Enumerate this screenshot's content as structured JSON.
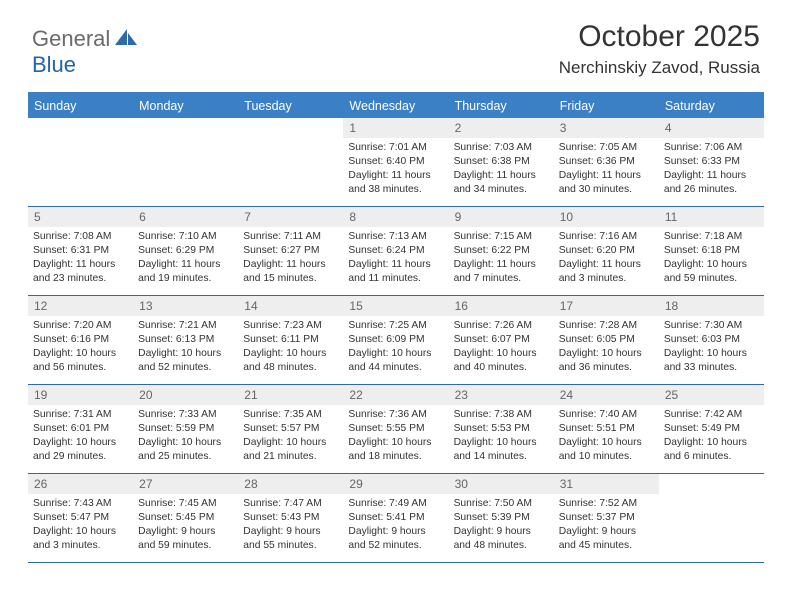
{
  "brand": {
    "word1": "General",
    "word2": "Blue"
  },
  "title": "October 2025",
  "location": "Nerchinskiy Zavod, Russia",
  "colors": {
    "header_bg": "#3b7fc4",
    "border": "#2e6aaa",
    "daynum_bg": "#eeeeee",
    "brand_blue": "#2265a9",
    "brand_gray": "#6b6b6b",
    "text": "#333333"
  },
  "typography": {
    "title_fontsize": 30,
    "location_fontsize": 17,
    "dayhead_fontsize": 12.5,
    "daynum_fontsize": 12,
    "body_fontsize": 10.3
  },
  "day_headers": [
    "Sunday",
    "Monday",
    "Tuesday",
    "Wednesday",
    "Thursday",
    "Friday",
    "Saturday"
  ],
  "weeks": [
    [
      {
        "n": "",
        "sunrise": "",
        "sunset": "",
        "day_h": "",
        "day_m": ""
      },
      {
        "n": "",
        "sunrise": "",
        "sunset": "",
        "day_h": "",
        "day_m": ""
      },
      {
        "n": "",
        "sunrise": "",
        "sunset": "",
        "day_h": "",
        "day_m": ""
      },
      {
        "n": "1",
        "sunrise": "7:01 AM",
        "sunset": "6:40 PM",
        "day_h": "11",
        "day_m": "38"
      },
      {
        "n": "2",
        "sunrise": "7:03 AM",
        "sunset": "6:38 PM",
        "day_h": "11",
        "day_m": "34"
      },
      {
        "n": "3",
        "sunrise": "7:05 AM",
        "sunset": "6:36 PM",
        "day_h": "11",
        "day_m": "30"
      },
      {
        "n": "4",
        "sunrise": "7:06 AM",
        "sunset": "6:33 PM",
        "day_h": "11",
        "day_m": "26"
      }
    ],
    [
      {
        "n": "5",
        "sunrise": "7:08 AM",
        "sunset": "6:31 PM",
        "day_h": "11",
        "day_m": "23"
      },
      {
        "n": "6",
        "sunrise": "7:10 AM",
        "sunset": "6:29 PM",
        "day_h": "11",
        "day_m": "19"
      },
      {
        "n": "7",
        "sunrise": "7:11 AM",
        "sunset": "6:27 PM",
        "day_h": "11",
        "day_m": "15"
      },
      {
        "n": "8",
        "sunrise": "7:13 AM",
        "sunset": "6:24 PM",
        "day_h": "11",
        "day_m": "11"
      },
      {
        "n": "9",
        "sunrise": "7:15 AM",
        "sunset": "6:22 PM",
        "day_h": "11",
        "day_m": "7"
      },
      {
        "n": "10",
        "sunrise": "7:16 AM",
        "sunset": "6:20 PM",
        "day_h": "11",
        "day_m": "3"
      },
      {
        "n": "11",
        "sunrise": "7:18 AM",
        "sunset": "6:18 PM",
        "day_h": "10",
        "day_m": "59"
      }
    ],
    [
      {
        "n": "12",
        "sunrise": "7:20 AM",
        "sunset": "6:16 PM",
        "day_h": "10",
        "day_m": "56"
      },
      {
        "n": "13",
        "sunrise": "7:21 AM",
        "sunset": "6:13 PM",
        "day_h": "10",
        "day_m": "52"
      },
      {
        "n": "14",
        "sunrise": "7:23 AM",
        "sunset": "6:11 PM",
        "day_h": "10",
        "day_m": "48"
      },
      {
        "n": "15",
        "sunrise": "7:25 AM",
        "sunset": "6:09 PM",
        "day_h": "10",
        "day_m": "44"
      },
      {
        "n": "16",
        "sunrise": "7:26 AM",
        "sunset": "6:07 PM",
        "day_h": "10",
        "day_m": "40"
      },
      {
        "n": "17",
        "sunrise": "7:28 AM",
        "sunset": "6:05 PM",
        "day_h": "10",
        "day_m": "36"
      },
      {
        "n": "18",
        "sunrise": "7:30 AM",
        "sunset": "6:03 PM",
        "day_h": "10",
        "day_m": "33"
      }
    ],
    [
      {
        "n": "19",
        "sunrise": "7:31 AM",
        "sunset": "6:01 PM",
        "day_h": "10",
        "day_m": "29"
      },
      {
        "n": "20",
        "sunrise": "7:33 AM",
        "sunset": "5:59 PM",
        "day_h": "10",
        "day_m": "25"
      },
      {
        "n": "21",
        "sunrise": "7:35 AM",
        "sunset": "5:57 PM",
        "day_h": "10",
        "day_m": "21"
      },
      {
        "n": "22",
        "sunrise": "7:36 AM",
        "sunset": "5:55 PM",
        "day_h": "10",
        "day_m": "18"
      },
      {
        "n": "23",
        "sunrise": "7:38 AM",
        "sunset": "5:53 PM",
        "day_h": "10",
        "day_m": "14"
      },
      {
        "n": "24",
        "sunrise": "7:40 AM",
        "sunset": "5:51 PM",
        "day_h": "10",
        "day_m": "10"
      },
      {
        "n": "25",
        "sunrise": "7:42 AM",
        "sunset": "5:49 PM",
        "day_h": "10",
        "day_m": "6"
      }
    ],
    [
      {
        "n": "26",
        "sunrise": "7:43 AM",
        "sunset": "5:47 PM",
        "day_h": "10",
        "day_m": "3"
      },
      {
        "n": "27",
        "sunrise": "7:45 AM",
        "sunset": "5:45 PM",
        "day_h": "9",
        "day_m": "59"
      },
      {
        "n": "28",
        "sunrise": "7:47 AM",
        "sunset": "5:43 PM",
        "day_h": "9",
        "day_m": "55"
      },
      {
        "n": "29",
        "sunrise": "7:49 AM",
        "sunset": "5:41 PM",
        "day_h": "9",
        "day_m": "52"
      },
      {
        "n": "30",
        "sunrise": "7:50 AM",
        "sunset": "5:39 PM",
        "day_h": "9",
        "day_m": "48"
      },
      {
        "n": "31",
        "sunrise": "7:52 AM",
        "sunset": "5:37 PM",
        "day_h": "9",
        "day_m": "45"
      },
      {
        "n": "",
        "sunrise": "",
        "sunset": "",
        "day_h": "",
        "day_m": ""
      }
    ]
  ]
}
